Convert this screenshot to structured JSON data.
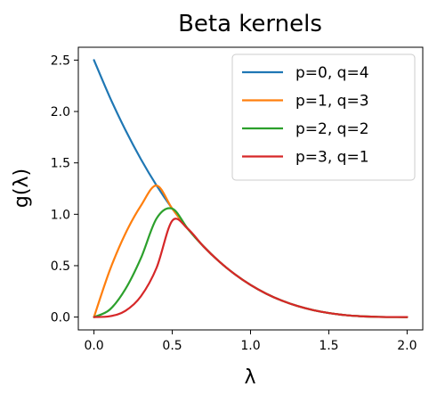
{
  "chart_data": {
    "type": "line",
    "title": "Beta kernels",
    "xlabel": "λ",
    "ylabel": "g(λ)",
    "xlim": [
      -0.1,
      2.1
    ],
    "ylim": [
      -0.125,
      2.625
    ],
    "xticks": [
      0.0,
      0.5,
      1.0,
      1.5,
      2.0
    ],
    "xtick_labels": [
      "0.0",
      "0.5",
      "1.0",
      "1.5",
      "2.0"
    ],
    "yticks": [
      0.0,
      0.5,
      1.0,
      1.5,
      2.0,
      2.5
    ],
    "ytick_labels": [
      "0.0",
      "0.5",
      "1.0",
      "1.5",
      "2.0",
      "2.5"
    ],
    "grid": false,
    "legend_position": "top-right",
    "x": [
      0.0,
      0.1,
      0.2,
      0.3,
      0.4,
      0.5,
      0.6,
      0.7,
      0.8,
      0.9,
      1.0,
      1.1,
      1.2,
      1.3,
      1.4,
      1.5,
      1.6,
      1.7,
      1.8,
      1.9,
      2.0
    ],
    "series": [
      {
        "name": "p=0, q=4",
        "color": "#1f77b4",
        "values": [
          2.5,
          2.1434,
          1.8225,
          1.5353,
          1.28,
          1.0547,
          0.8574,
          0.6866,
          0.54,
          0.416,
          0.3125,
          0.2278,
          0.16,
          0.1072,
          0.0675,
          0.0391,
          0.02,
          0.0084,
          0.0025,
          0.0003,
          0.0
        ]
      },
      {
        "name": "p=1, q=3",
        "color": "#ff7f0e",
        "values": [
          0.0,
          0.4513,
          0.81,
          1.0838,
          1.28,
          1.0547,
          0.8574,
          0.6866,
          0.54,
          0.416,
          0.3125,
          0.2278,
          0.16,
          0.1072,
          0.0675,
          0.0391,
          0.02,
          0.0084,
          0.0025,
          0.0003,
          0.0
        ]
      },
      {
        "name": "p=2, q=2",
        "color": "#2ca02c",
        "values": [
          0.0,
          0.0713,
          0.27,
          0.5738,
          0.96,
          1.0547,
          0.8574,
          0.6866,
          0.54,
          0.416,
          0.3125,
          0.2278,
          0.16,
          0.1072,
          0.0675,
          0.0391,
          0.02,
          0.0084,
          0.0025,
          0.0003,
          0.0
        ]
      },
      {
        "name": "p=3, q=1",
        "color": "#d62728",
        "values": [
          0.0,
          0.0075,
          0.06,
          0.2025,
          0.48,
          0.9375,
          0.8574,
          0.6866,
          0.54,
          0.416,
          0.3125,
          0.2278,
          0.16,
          0.1072,
          0.0675,
          0.0391,
          0.02,
          0.0084,
          0.0025,
          0.0003,
          0.0
        ]
      }
    ]
  }
}
